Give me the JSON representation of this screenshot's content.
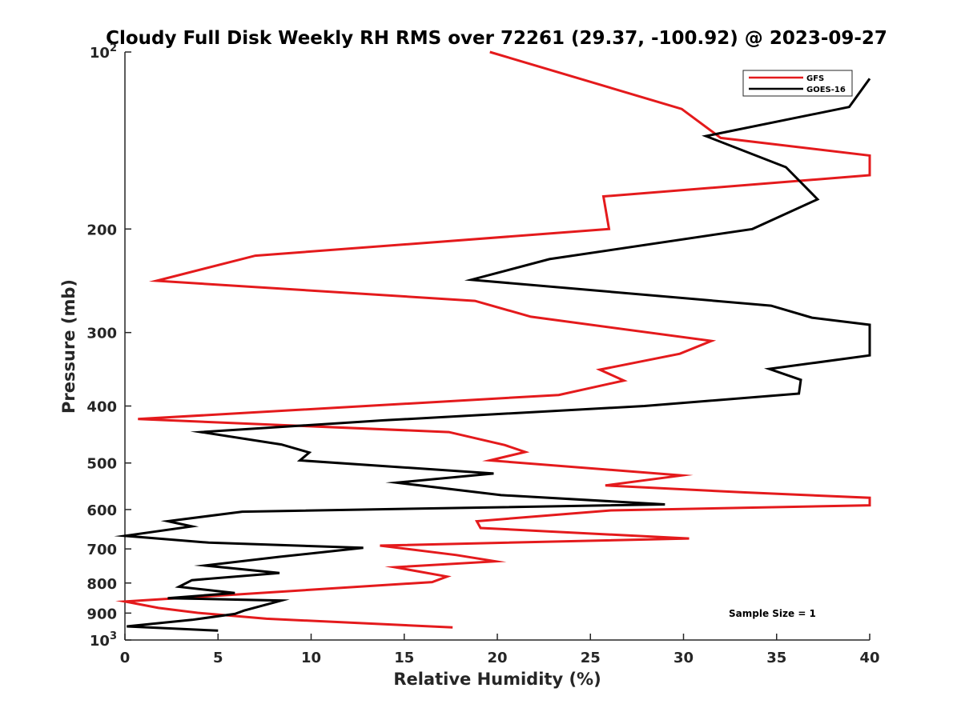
{
  "chart_data": {
    "type": "line",
    "title": "Cloudy Full Disk Weekly RH RMS over 72261 (29.37, -100.92) @ 2023-09-27",
    "xlabel": "Relative Humidity (%)",
    "ylabel": "Pressure (mb)",
    "xlim": [
      0,
      40
    ],
    "ylim": [
      100,
      1000
    ],
    "yscale": "log",
    "y_reversed": true,
    "grid": false,
    "legend_position": "top-right",
    "x_ticks": [
      "0",
      "5",
      "10",
      "15",
      "20",
      "25",
      "30",
      "35",
      "40"
    ],
    "y_ticks": [
      {
        "value": 100,
        "label": "10",
        "exp": "2"
      },
      {
        "value": 200,
        "label": "200"
      },
      {
        "value": 300,
        "label": "300"
      },
      {
        "value": 400,
        "label": "400"
      },
      {
        "value": 500,
        "label": "500"
      },
      {
        "value": 600,
        "label": "600"
      },
      {
        "value": 700,
        "label": "700"
      },
      {
        "value": 800,
        "label": "800"
      },
      {
        "value": 900,
        "label": "900"
      },
      {
        "value": 1000,
        "label": "10",
        "exp": "3"
      }
    ],
    "series": [
      {
        "name": "GFS",
        "color": "#e41a1c",
        "points": [
          [
            19.6,
            100
          ],
          [
            29.9,
            125
          ],
          [
            32.0,
            140
          ],
          [
            40.0,
            150
          ],
          [
            40.0,
            162
          ],
          [
            25.7,
            176
          ],
          [
            26.0,
            200
          ],
          [
            7.0,
            222
          ],
          [
            1.7,
            245
          ],
          [
            18.8,
            265
          ],
          [
            21.8,
            282
          ],
          [
            31.5,
            310
          ],
          [
            29.8,
            326
          ],
          [
            25.5,
            347
          ],
          [
            26.8,
            362
          ],
          [
            23.3,
            383
          ],
          [
            0.7,
            421
          ],
          [
            17.4,
            443
          ],
          [
            20.4,
            466
          ],
          [
            21.5,
            479
          ],
          [
            19.6,
            495
          ],
          [
            29.9,
            525
          ],
          [
            25.8,
            546
          ],
          [
            33.3,
            561
          ],
          [
            40.0,
            573
          ],
          [
            40.0,
            590
          ],
          [
            26.1,
            602
          ],
          [
            18.9,
            628
          ],
          [
            19.1,
            645
          ],
          [
            30.3,
            672
          ],
          [
            13.7,
            691
          ],
          [
            17.8,
            717
          ],
          [
            19.9,
            735
          ],
          [
            14.5,
            752
          ],
          [
            17.3,
            780
          ],
          [
            16.5,
            797
          ],
          [
            0.0,
            860
          ],
          [
            1.8,
            882
          ],
          [
            3.9,
            899
          ],
          [
            7.6,
            920
          ],
          [
            17.6,
            952
          ]
        ]
      },
      {
        "name": "GOES-16",
        "color": "#000000",
        "points": [
          [
            40.0,
            111
          ],
          [
            38.9,
            124
          ],
          [
            31.2,
            139
          ],
          [
            35.5,
            157
          ],
          [
            37.2,
            178
          ],
          [
            33.7,
            200
          ],
          [
            22.8,
            225
          ],
          [
            18.6,
            244
          ],
          [
            34.7,
            270
          ],
          [
            36.9,
            283
          ],
          [
            40.0,
            291
          ],
          [
            40.0,
            328
          ],
          [
            34.6,
            346
          ],
          [
            36.3,
            361
          ],
          [
            36.2,
            381
          ],
          [
            27.9,
            400
          ],
          [
            13.9,
            423
          ],
          [
            4.1,
            443
          ],
          [
            8.4,
            465
          ],
          [
            9.9,
            480
          ],
          [
            9.4,
            495
          ],
          [
            19.8,
            521
          ],
          [
            14.6,
            540
          ],
          [
            20.2,
            567
          ],
          [
            29.0,
            588
          ],
          [
            6.3,
            605
          ],
          [
            2.3,
            628
          ],
          [
            3.6,
            641
          ],
          [
            0.0,
            665
          ],
          [
            4.5,
            683
          ],
          [
            12.8,
            697
          ],
          [
            8.3,
            722
          ],
          [
            4.3,
            747
          ],
          [
            8.3,
            769
          ],
          [
            3.6,
            791
          ],
          [
            2.9,
            812
          ],
          [
            5.9,
            832
          ],
          [
            2.3,
            849
          ],
          [
            8.4,
            857
          ],
          [
            6.4,
            891
          ],
          [
            5.9,
            903
          ],
          [
            3.6,
            924
          ],
          [
            0.1,
            948
          ],
          [
            5.0,
            964
          ]
        ]
      }
    ],
    "annotations": [
      {
        "text": "Sample Size = 1",
        "position": "bottom-right"
      }
    ]
  }
}
